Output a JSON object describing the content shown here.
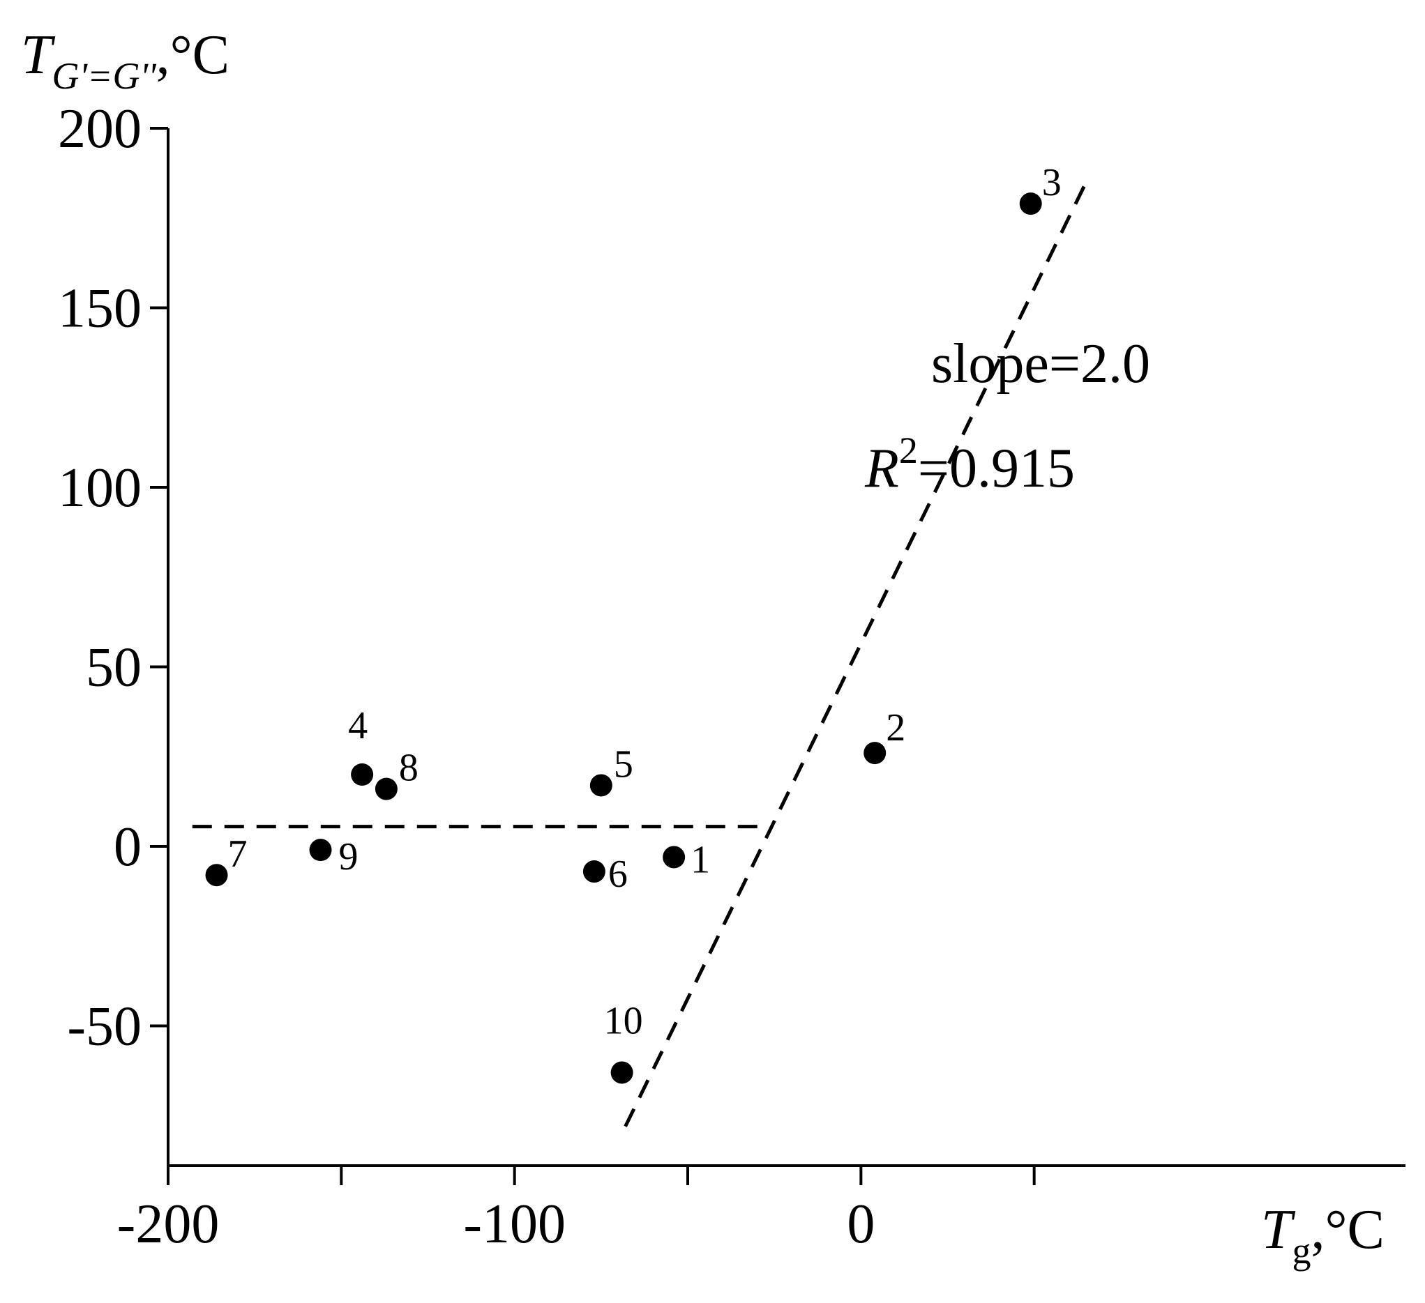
{
  "chart_data": {
    "type": "scatter",
    "title": "",
    "xlabel": {
      "symbol": "T",
      "subscript": "g",
      "unit": ",°C"
    },
    "ylabel": {
      "symbol": "T",
      "subscript": "G'=G''",
      "unit": ",°C"
    },
    "xlim": [
      -200,
      150
    ],
    "ylim": [
      -90,
      200
    ],
    "xticks": [
      -200,
      -150,
      -100,
      -50,
      0,
      50
    ],
    "xtick_labels": [
      "-200",
      "",
      "-100",
      "",
      "0",
      ""
    ],
    "yticks": [
      -50,
      0,
      50,
      100,
      150,
      200
    ],
    "ytick_labels": [
      "-50",
      "0",
      "50",
      "100",
      "150",
      "200"
    ],
    "grid": false,
    "points": [
      {
        "label": "1",
        "x": -54,
        "y": -3
      },
      {
        "label": "2",
        "x": 4,
        "y": 26
      },
      {
        "label": "3",
        "x": 49,
        "y": 179
      },
      {
        "label": "4",
        "x": -144,
        "y": 20
      },
      {
        "label": "5",
        "x": -75,
        "y": 17
      },
      {
        "label": "6",
        "x": -77,
        "y": -7
      },
      {
        "label": "7",
        "x": -186,
        "y": -8
      },
      {
        "label": "8",
        "x": -137,
        "y": 16
      },
      {
        "label": "9",
        "x": -156,
        "y": -1
      },
      {
        "label": "10",
        "x": -69,
        "y": -63
      }
    ],
    "fit_lines": [
      {
        "style": "dashed",
        "from": [
          -193,
          5.5
        ],
        "to": [
          -27,
          5.5
        ]
      },
      {
        "style": "dashed",
        "from": [
          -68,
          -78
        ],
        "to": [
          65,
          185
        ]
      }
    ],
    "annotations": [
      {
        "text": "slope=2.0"
      },
      {
        "text_prefix": "R",
        "superscript": "2",
        "text_suffix": "=0.915"
      }
    ]
  }
}
